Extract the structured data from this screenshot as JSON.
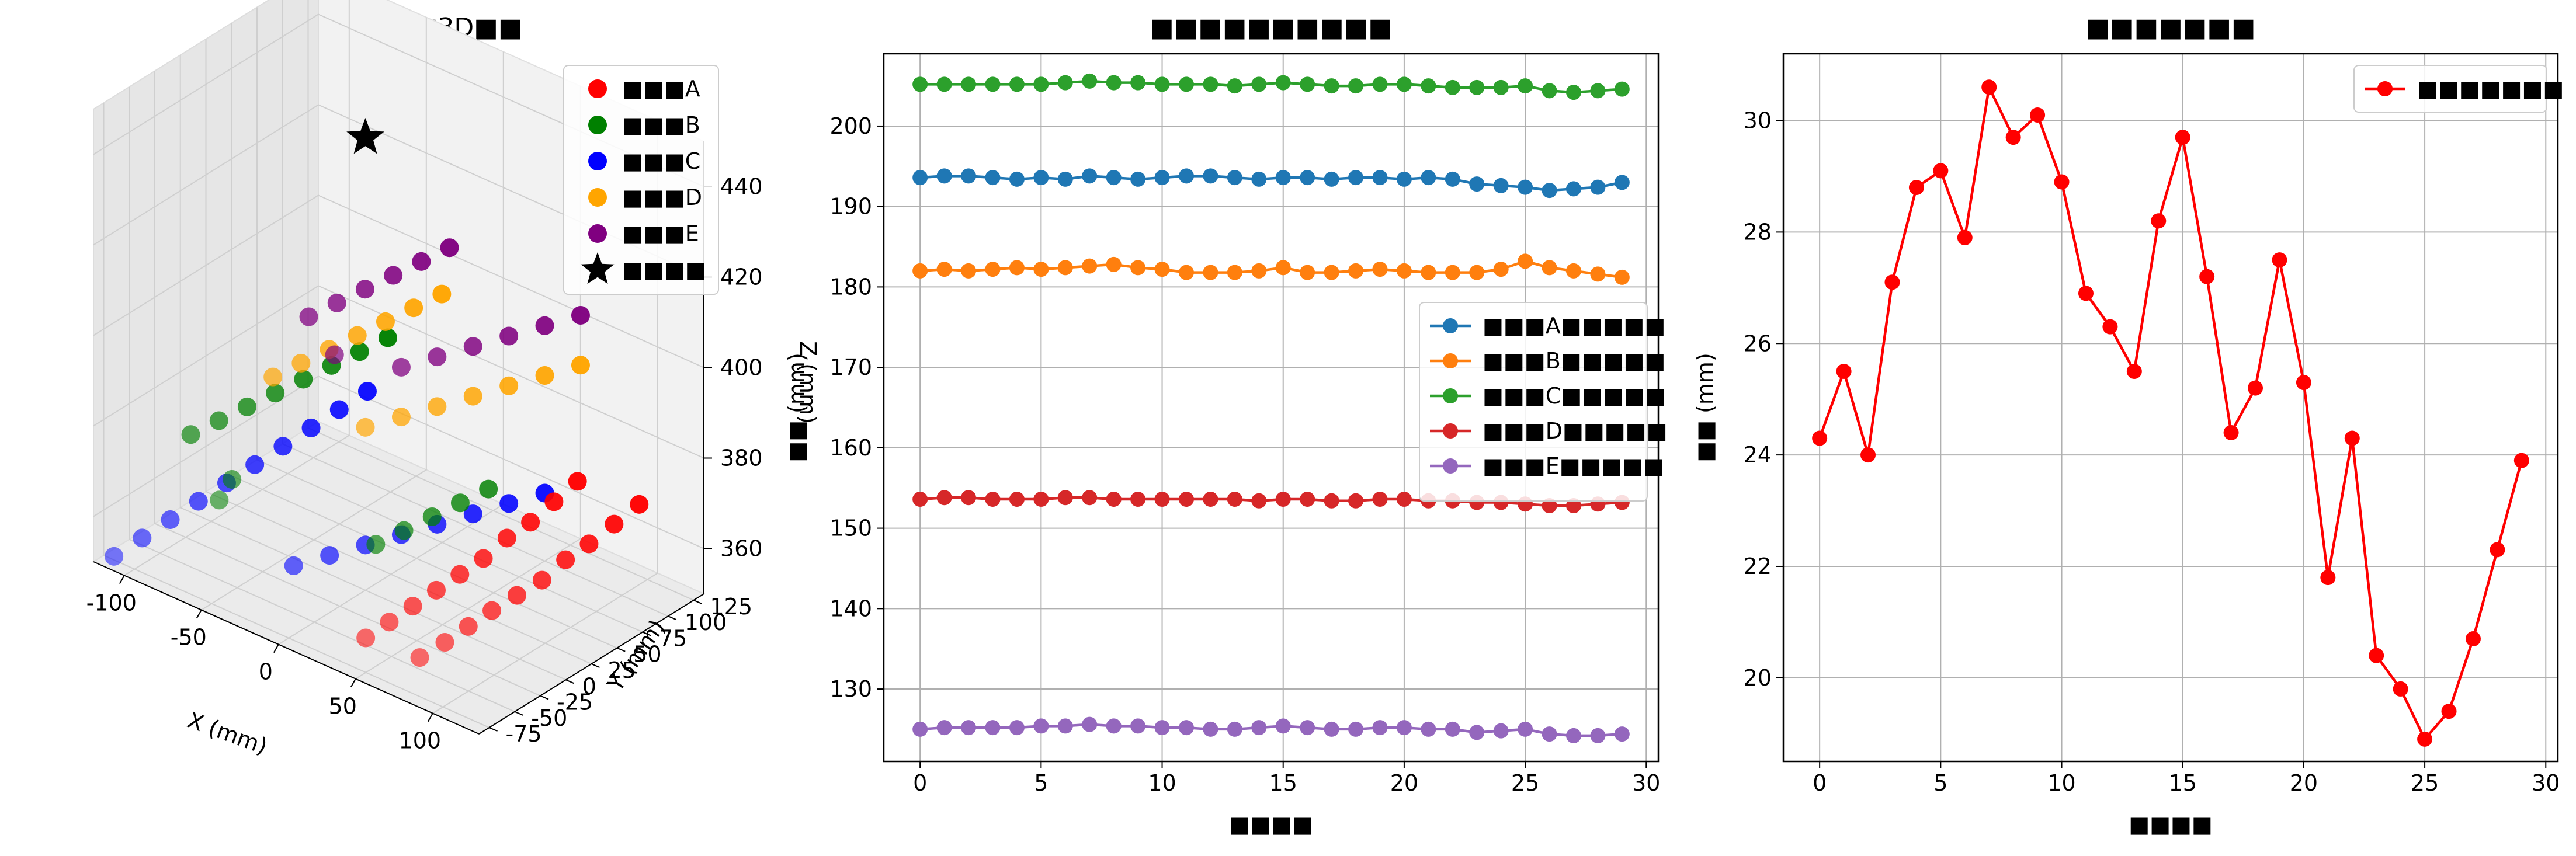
{
  "chart_data": [
    {
      "type": "scatter3d",
      "title": "■■■■■3D■■",
      "xlabel": "X (mm)",
      "ylabel": "Y (mm)",
      "zlabel": "Z (mm)",
      "xlim": [
        -120,
        130
      ],
      "ylim": [
        -85,
        135
      ],
      "zlim": [
        350,
        450
      ],
      "xticks": [
        "-100",
        "-50",
        "0",
        "50",
        "100"
      ],
      "yticks": [
        "-75",
        "-50",
        "-25",
        "0",
        "25",
        "50",
        "75",
        "100",
        "125"
      ],
      "zticks": [
        "360",
        "380",
        "400",
        "420",
        "440"
      ],
      "legend_position": "top-right",
      "grid": true,
      "series": [
        {
          "name": "■■■A",
          "color": "#ff0000",
          "marker": "circle",
          "points": [
            [
              75,
              -60,
              355
            ],
            [
              78,
              -40,
              356
            ],
            [
              80,
              -20,
              357
            ],
            [
              82,
              0,
              358
            ],
            [
              85,
              20,
              359
            ],
            [
              88,
              40,
              360
            ],
            [
              90,
              60,
              362
            ],
            [
              92,
              80,
              363
            ],
            [
              95,
              100,
              365
            ],
            [
              98,
              120,
              367
            ],
            [
              40,
              -60,
              354
            ],
            [
              42,
              -40,
              355
            ],
            [
              44,
              -20,
              356
            ],
            [
              46,
              0,
              357
            ],
            [
              48,
              20,
              358
            ],
            [
              50,
              40,
              359
            ],
            [
              52,
              60,
              361
            ],
            [
              54,
              80,
              362
            ],
            [
              56,
              100,
              364
            ],
            [
              58,
              120,
              366
            ]
          ]
        },
        {
          "name": "■■■B",
          "color": "#008000",
          "marker": "circle",
          "points": [
            [
              -100,
              -20,
              372
            ],
            [
              -95,
              0,
              373
            ],
            [
              -90,
              20,
              374
            ],
            [
              -85,
              40,
              375
            ],
            [
              -80,
              60,
              376
            ],
            [
              -75,
              80,
              377
            ],
            [
              -70,
              100,
              378
            ],
            [
              -65,
              120,
              379
            ],
            [
              -60,
              -40,
              371
            ],
            [
              -55,
              -60,
              370
            ],
            [
              20,
              -20,
              366
            ],
            [
              25,
              0,
              367
            ],
            [
              30,
              20,
              368
            ],
            [
              35,
              40,
              369
            ],
            [
              40,
              60,
              370
            ]
          ]
        },
        {
          "name": "■■■C",
          "color": "#0000ff",
          "marker": "circle",
          "points": [
            [
              -110,
              -80,
              352
            ],
            [
              -105,
              -60,
              354
            ],
            [
              -100,
              -40,
              356
            ],
            [
              -95,
              -20,
              358
            ],
            [
              -90,
              0,
              360
            ],
            [
              -85,
              20,
              362
            ],
            [
              -80,
              40,
              364
            ],
            [
              -75,
              60,
              366
            ],
            [
              -70,
              80,
              368
            ],
            [
              -65,
              100,
              370
            ],
            [
              -20,
              -40,
              358
            ],
            [
              -10,
              -20,
              359
            ],
            [
              0,
              0,
              360
            ],
            [
              10,
              20,
              361
            ],
            [
              20,
              40,
              362
            ],
            [
              30,
              60,
              363
            ],
            [
              40,
              80,
              364
            ],
            [
              50,
              100,
              365
            ]
          ]
        },
        {
          "name": "■■■D",
          "color": "#ffa500",
          "marker": "circle",
          "points": [
            [
              -60,
              0,
              388
            ],
            [
              -55,
              20,
              389
            ],
            [
              -50,
              40,
              390
            ],
            [
              -45,
              60,
              391
            ],
            [
              -40,
              80,
              392
            ],
            [
              -35,
              100,
              393
            ],
            [
              -30,
              120,
              394
            ],
            [
              0,
              0,
              386
            ],
            [
              10,
              20,
              387
            ],
            [
              20,
              40,
              388
            ],
            [
              30,
              60,
              389
            ],
            [
              40,
              80,
              390
            ],
            [
              50,
              100,
              391
            ],
            [
              60,
              120,
              392
            ]
          ]
        },
        {
          "name": "■■■E",
          "color": "#800080",
          "marker": "circle",
          "points": [
            [
              -50,
              20,
              400
            ],
            [
              -45,
              40,
              401
            ],
            [
              -40,
              60,
              402
            ],
            [
              -35,
              80,
              403
            ],
            [
              -30,
              100,
              404
            ],
            [
              -25,
              120,
              405
            ],
            [
              -20,
              0,
              399
            ],
            [
              10,
              20,
              398
            ],
            [
              20,
              40,
              399
            ],
            [
              30,
              60,
              400
            ],
            [
              40,
              80,
              401
            ],
            [
              50,
              100,
              402
            ],
            [
              60,
              120,
              403
            ]
          ]
        },
        {
          "name": "■■■■",
          "color": "#000000",
          "marker": "star",
          "points": [
            [
              0,
              0,
              450
            ]
          ]
        }
      ]
    },
    {
      "type": "line",
      "title": "■■■■■■■■■■",
      "xlabel": "■■■■",
      "ylabel": "■■ (mm)",
      "xlim": [
        -1.5,
        30.5
      ],
      "ylim": [
        121,
        209
      ],
      "xticks": [
        0,
        5,
        10,
        15,
        20,
        25,
        30
      ],
      "yticks": [
        130,
        140,
        150,
        160,
        170,
        180,
        190,
        200
      ],
      "legend_position": "center-right",
      "grid": true,
      "x": [
        0,
        1,
        2,
        3,
        4,
        5,
        6,
        7,
        8,
        9,
        10,
        11,
        12,
        13,
        14,
        15,
        16,
        17,
        18,
        19,
        20,
        21,
        22,
        23,
        24,
        25,
        26,
        27,
        28,
        29
      ],
      "series": [
        {
          "name": "■■■A■■■■■",
          "color": "#1f77b4",
          "values": [
            193.6,
            193.8,
            193.8,
            193.6,
            193.4,
            193.6,
            193.4,
            193.8,
            193.6,
            193.4,
            193.6,
            193.8,
            193.8,
            193.6,
            193.4,
            193.6,
            193.6,
            193.4,
            193.6,
            193.6,
            193.4,
            193.6,
            193.4,
            192.8,
            192.6,
            192.4,
            192.0,
            192.2,
            192.4,
            193.0
          ]
        },
        {
          "name": "■■■B■■■■■",
          "color": "#ff7f0e",
          "values": [
            182.0,
            182.2,
            182.0,
            182.2,
            182.4,
            182.2,
            182.4,
            182.6,
            182.8,
            182.4,
            182.2,
            181.8,
            181.8,
            181.8,
            182.0,
            182.4,
            181.8,
            181.8,
            182.0,
            182.2,
            182.0,
            181.8,
            181.8,
            181.8,
            182.2,
            183.2,
            182.4,
            182.0,
            181.6,
            181.2
          ]
        },
        {
          "name": "■■■C■■■■■",
          "color": "#2ca02c",
          "values": [
            205.2,
            205.2,
            205.2,
            205.2,
            205.2,
            205.2,
            205.4,
            205.6,
            205.4,
            205.4,
            205.2,
            205.2,
            205.2,
            205.0,
            205.2,
            205.4,
            205.2,
            205.0,
            205.0,
            205.2,
            205.2,
            205.0,
            204.8,
            204.8,
            204.8,
            205.0,
            204.4,
            204.2,
            204.4,
            204.6
          ]
        },
        {
          "name": "■■■D■■■■■",
          "color": "#d62728",
          "values": [
            153.6,
            153.8,
            153.8,
            153.6,
            153.6,
            153.6,
            153.8,
            153.8,
            153.6,
            153.6,
            153.6,
            153.6,
            153.6,
            153.6,
            153.4,
            153.6,
            153.6,
            153.4,
            153.4,
            153.6,
            153.6,
            153.4,
            153.4,
            153.2,
            153.2,
            153.0,
            152.8,
            152.8,
            153.0,
            153.2
          ]
        },
        {
          "name": "■■■E■■■■■",
          "color": "#9467bd",
          "values": [
            125.0,
            125.2,
            125.2,
            125.2,
            125.2,
            125.4,
            125.4,
            125.6,
            125.4,
            125.4,
            125.2,
            125.2,
            125.0,
            125.0,
            125.2,
            125.4,
            125.2,
            125.0,
            125.0,
            125.2,
            125.2,
            125.0,
            125.0,
            124.6,
            124.8,
            125.0,
            124.4,
            124.2,
            124.2,
            124.4
          ]
        }
      ]
    },
    {
      "type": "line",
      "title": "■■■■■■■",
      "xlabel": "■■■■",
      "ylabel": "■■ (mm)",
      "xlim": [
        -1.5,
        30.5
      ],
      "ylim": [
        18.5,
        31.2
      ],
      "xticks": [
        0,
        5,
        10,
        15,
        20,
        25,
        30
      ],
      "yticks": [
        20,
        22,
        24,
        26,
        28,
        30
      ],
      "legend_position": "top-right",
      "grid": true,
      "x": [
        0,
        1,
        2,
        3,
        4,
        5,
        6,
        7,
        8,
        9,
        10,
        11,
        12,
        13,
        14,
        15,
        16,
        17,
        18,
        19,
        20,
        21,
        22,
        23,
        24,
        25,
        26,
        27,
        28,
        29
      ],
      "series": [
        {
          "name": "■■■■■■■",
          "color": "#ff0000",
          "values": [
            24.3,
            25.5,
            24.0,
            27.1,
            28.8,
            29.1,
            27.9,
            30.6,
            29.7,
            30.1,
            28.9,
            26.9,
            26.3,
            25.5,
            28.2,
            29.7,
            27.2,
            24.4,
            25.2,
            27.5,
            25.3,
            21.8,
            24.3,
            20.4,
            19.8,
            18.9,
            19.4,
            20.7,
            22.3,
            23.9
          ]
        }
      ]
    }
  ]
}
